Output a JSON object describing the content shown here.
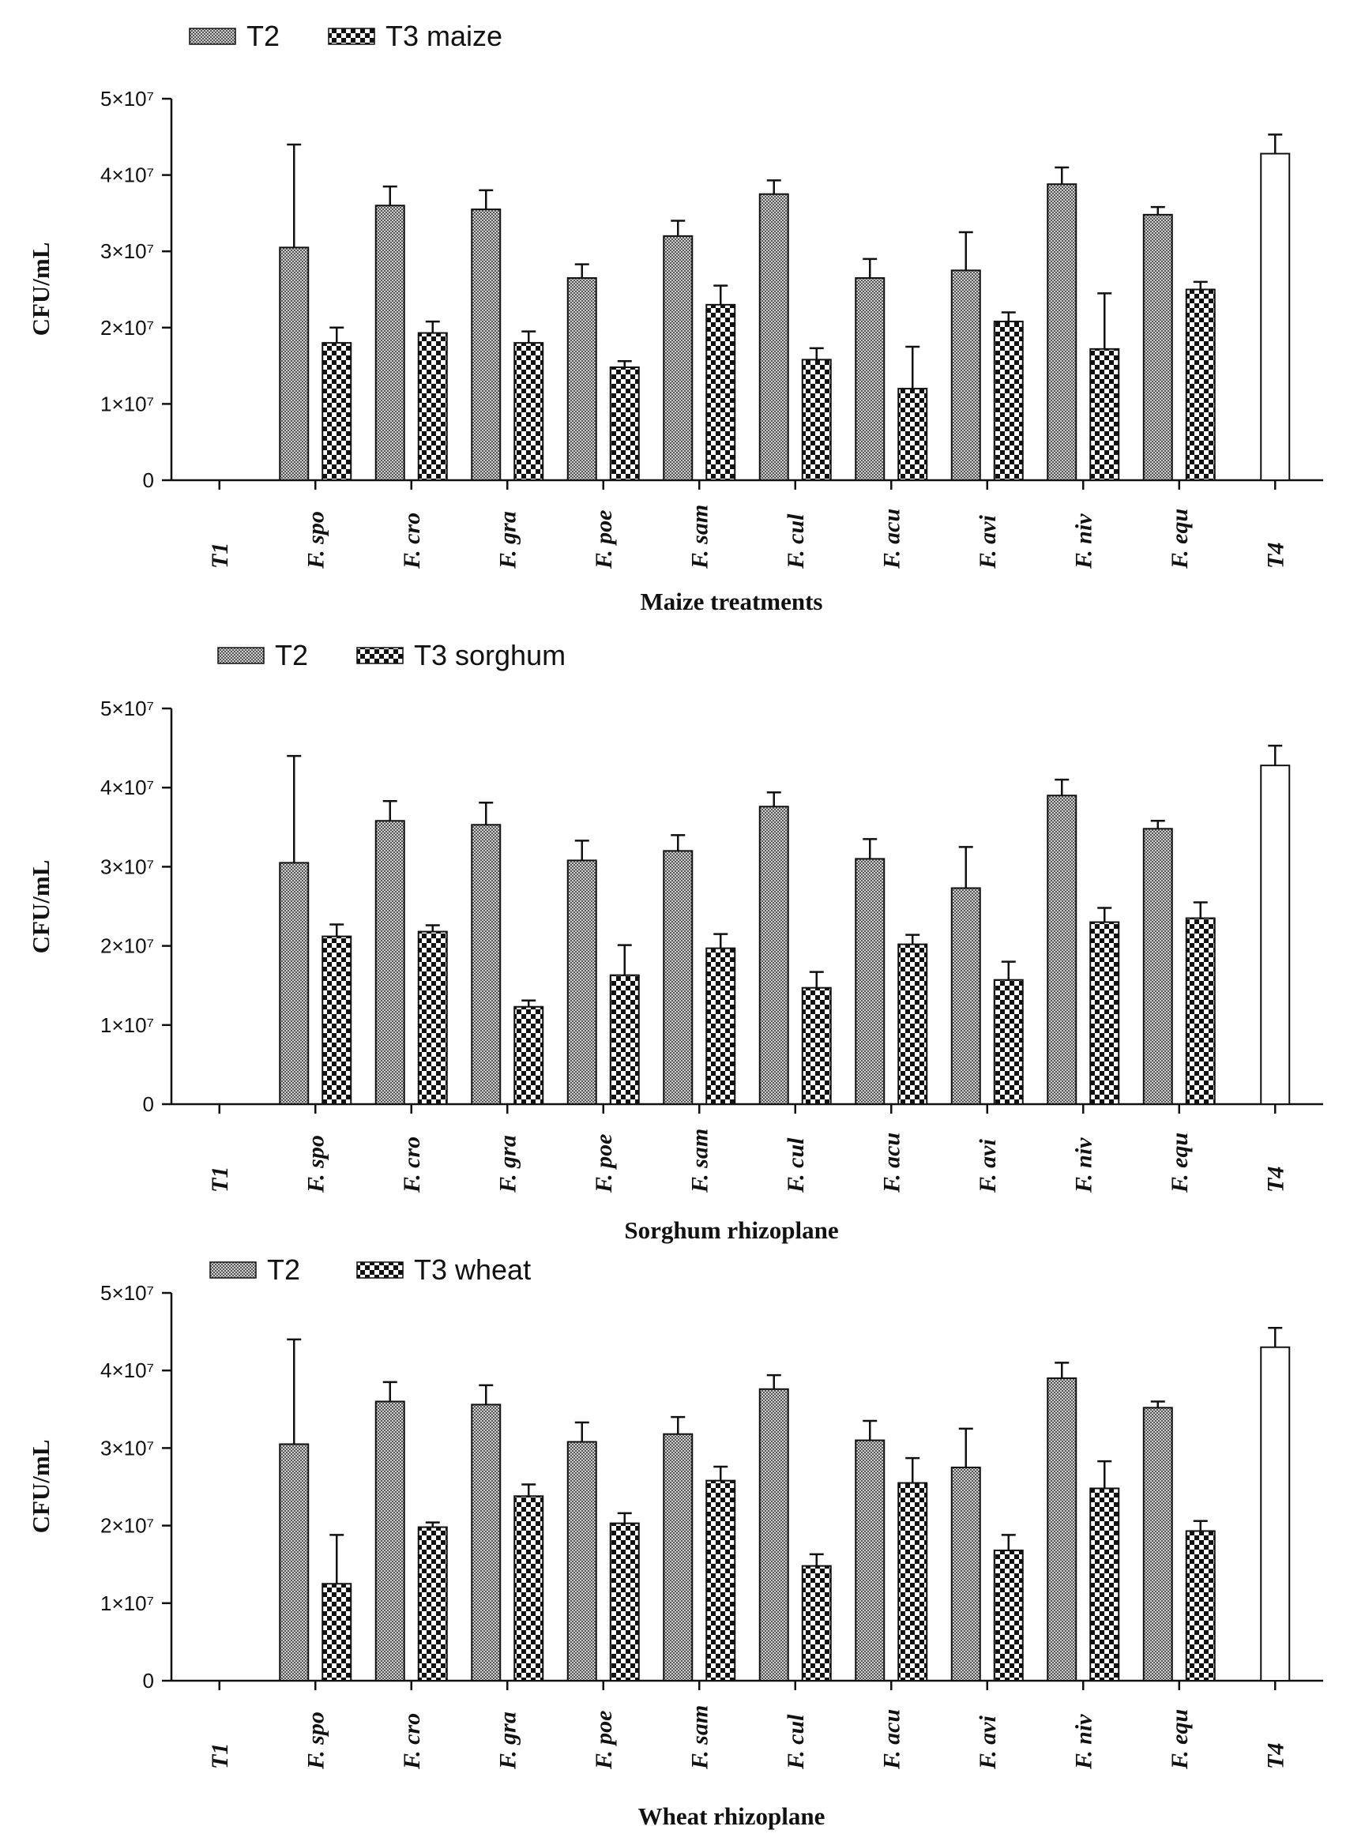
{
  "colors": {
    "axis": "#111111",
    "t2_fill": "#8c8c8c",
    "t3_fill": "#111111",
    "t4_fill": "#ffffff"
  },
  "chart_data": [
    {
      "type": "bar",
      "title": "",
      "xlabel": "Maize treatments",
      "ylabel": "CFU/mL",
      "ylim": [
        0,
        50000000
      ],
      "yticks": [
        "0",
        "1×10⁷",
        "2×10⁷",
        "3×10⁷",
        "4×10⁷",
        "5×10⁷"
      ],
      "legend": [
        "T2",
        "T3 maize"
      ],
      "categories": [
        "T1",
        "F. spo",
        "F. cro",
        "F. gra",
        "F. poe",
        "F. sam",
        "F. cul",
        "F. acu",
        "F. avi",
        "F. niv",
        "F. equ",
        "T4"
      ],
      "series": [
        {
          "name": "T2",
          "values": [
            null,
            30.5,
            36,
            35.5,
            26.5,
            32,
            37.5,
            26.5,
            27.5,
            38.8,
            34.8,
            null
          ],
          "errors": [
            null,
            13.5,
            2.5,
            2.5,
            1.8,
            2,
            1.8,
            2.5,
            5,
            2.2,
            1,
            null
          ],
          "unit_scale": 1000000
        },
        {
          "name": "T3 maize",
          "values": [
            null,
            18,
            19.3,
            18,
            14.8,
            23,
            15.8,
            12,
            20.8,
            17.2,
            25,
            null
          ],
          "errors": [
            null,
            2,
            1.5,
            1.5,
            0.8,
            2.5,
            1.5,
            5.5,
            1.2,
            7.3,
            1,
            null
          ],
          "unit_scale": 1000000
        },
        {
          "name": "T4",
          "values": [
            null,
            null,
            null,
            null,
            null,
            null,
            null,
            null,
            null,
            null,
            null,
            42.8
          ],
          "errors": [
            null,
            null,
            null,
            null,
            null,
            null,
            null,
            null,
            null,
            null,
            null,
            2.5
          ],
          "unit_scale": 1000000
        }
      ]
    },
    {
      "type": "bar",
      "title": "",
      "xlabel": "Sorghum rhizoplane",
      "ylabel": "CFU/mL",
      "ylim": [
        0,
        50000000
      ],
      "yticks": [
        "0",
        "1×10⁷",
        "2×10⁷",
        "3×10⁷",
        "4×10⁷",
        "5×10⁷"
      ],
      "legend": [
        "T2",
        "T3 sorghum"
      ],
      "categories": [
        "T1",
        "F. spo",
        "F. cro",
        "F. gra",
        "F. poe",
        "F. sam",
        "F. cul",
        "F. acu",
        "F. avi",
        "F. niv",
        "F. equ",
        "T4"
      ],
      "series": [
        {
          "name": "T2",
          "values": [
            null,
            30.5,
            35.8,
            35.3,
            30.8,
            32,
            37.6,
            31,
            27.3,
            39,
            34.8,
            null
          ],
          "errors": [
            null,
            13.5,
            2.5,
            2.8,
            2.5,
            2,
            1.8,
            2.5,
            5.2,
            2,
            1,
            null
          ],
          "unit_scale": 1000000
        },
        {
          "name": "T3 sorghum",
          "values": [
            null,
            21.2,
            21.8,
            12.3,
            16.3,
            19.7,
            14.7,
            20.2,
            15.7,
            23,
            23.5,
            null
          ],
          "errors": [
            null,
            1.5,
            0.8,
            0.8,
            3.8,
            1.8,
            2,
            1.2,
            2.3,
            1.8,
            2,
            null
          ],
          "unit_scale": 1000000
        },
        {
          "name": "T4",
          "values": [
            null,
            null,
            null,
            null,
            null,
            null,
            null,
            null,
            null,
            null,
            null,
            42.8
          ],
          "errors": [
            null,
            null,
            null,
            null,
            null,
            null,
            null,
            null,
            null,
            null,
            null,
            2.5
          ],
          "unit_scale": 1000000
        }
      ]
    },
    {
      "type": "bar",
      "title": "",
      "xlabel": "Wheat rhizoplane",
      "ylabel": "CFU/mL",
      "ylim": [
        0,
        50000000
      ],
      "yticks": [
        "0",
        "1×10⁷",
        "2×10⁷",
        "3×10⁷",
        "4×10⁷",
        "5×10⁷"
      ],
      "legend": [
        "T2",
        "T3 wheat"
      ],
      "categories": [
        "T1",
        "F. spo",
        "F. cro",
        "F. gra",
        "F. poe",
        "F. sam",
        "F. cul",
        "F. acu",
        "F. avi",
        "F. niv",
        "F. equ",
        "T4"
      ],
      "series": [
        {
          "name": "T2",
          "values": [
            null,
            30.5,
            36,
            35.6,
            30.8,
            31.8,
            37.6,
            31,
            27.5,
            39,
            35.2,
            null
          ],
          "errors": [
            null,
            13.5,
            2.5,
            2.5,
            2.5,
            2.2,
            1.8,
            2.5,
            5,
            2,
            0.8,
            null
          ],
          "unit_scale": 1000000
        },
        {
          "name": "T3 wheat",
          "values": [
            null,
            12.5,
            19.8,
            23.8,
            20.3,
            25.8,
            14.8,
            25.5,
            16.8,
            24.8,
            19.3,
            null
          ],
          "errors": [
            null,
            6.3,
            0.6,
            1.5,
            1.3,
            1.8,
            1.5,
            3.2,
            2,
            3.5,
            1.3,
            null
          ],
          "unit_scale": 1000000
        },
        {
          "name": "T4",
          "values": [
            null,
            null,
            null,
            null,
            null,
            null,
            null,
            null,
            null,
            null,
            null,
            43
          ],
          "errors": [
            null,
            null,
            null,
            null,
            null,
            null,
            null,
            null,
            null,
            null,
            null,
            2.5
          ],
          "unit_scale": 1000000
        }
      ]
    }
  ]
}
